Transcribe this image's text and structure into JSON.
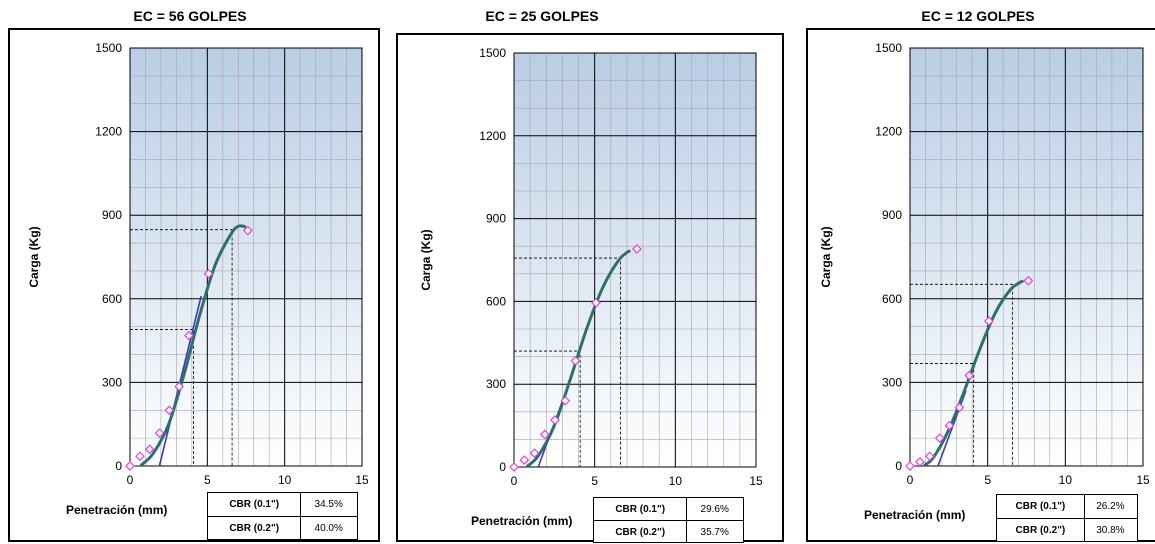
{
  "chart_data": [
    {
      "type": "line",
      "title": "EC = 56 GOLPES",
      "xlabel": "Penetración (mm)",
      "ylabel": "Carga (Kg)",
      "xlim": [
        0,
        15
      ],
      "ylim": [
        0,
        1500
      ],
      "x_ticks": [
        "0",
        "5",
        "10",
        "15"
      ],
      "y_ticks": [
        "0",
        "300",
        "600",
        "900",
        "1200",
        "1500"
      ],
      "grid": true,
      "series": [
        {
          "points": [
            [
              0,
              0
            ],
            [
              0.64,
              35
            ],
            [
              1.27,
              60
            ],
            [
              1.91,
              118
            ],
            [
              2.54,
              200
            ],
            [
              3.18,
              285
            ],
            [
              3.81,
              468
            ],
            [
              5.08,
              690
            ],
            [
              7.62,
              845
            ]
          ]
        }
      ],
      "fitted_curve": [
        [
          0.7,
          2
        ],
        [
          1.5,
          45
        ],
        [
          2.5,
          150
        ],
        [
          3.5,
          330
        ],
        [
          4.5,
          540
        ],
        [
          5.5,
          720
        ],
        [
          6.5,
          830
        ],
        [
          7.0,
          860
        ],
        [
          7.5,
          858
        ]
      ],
      "tangent_line": [
        [
          1.9,
          0
        ],
        [
          4.6,
          610
        ]
      ],
      "reference_lines": [
        {
          "x": 4.1,
          "y": 490
        },
        {
          "x": 6.6,
          "y": 848
        }
      ],
      "cbr": [
        {
          "label": "CBR (0.1\")",
          "value": "34.5%"
        },
        {
          "label": "CBR (0.2\")",
          "value": "40.0%"
        }
      ]
    },
    {
      "type": "line",
      "title": "EC = 25 GOLPES",
      "xlabel": "Penetración (mm)",
      "ylabel": "Carga (Kg)",
      "xlim": [
        0,
        15
      ],
      "ylim": [
        0,
        1500
      ],
      "x_ticks": [
        "0",
        "5",
        "10",
        "15"
      ],
      "y_ticks": [
        "0",
        "300",
        "600",
        "900",
        "1200",
        "1500"
      ],
      "grid": true,
      "series": [
        {
          "points": [
            [
              0,
              0
            ],
            [
              0.64,
              25
            ],
            [
              1.27,
              50
            ],
            [
              1.91,
              118
            ],
            [
              2.54,
              170
            ],
            [
              3.18,
              240
            ],
            [
              3.81,
              385
            ],
            [
              5.08,
              595
            ],
            [
              7.62,
              790
            ]
          ]
        }
      ],
      "fitted_curve": [
        [
          0.8,
          2
        ],
        [
          1.5,
          40
        ],
        [
          2.5,
          150
        ],
        [
          3.5,
          320
        ],
        [
          4.5,
          500
        ],
        [
          5.5,
          650
        ],
        [
          6.5,
          750
        ],
        [
          7.2,
          785
        ]
      ],
      "tangent_line": [
        [
          1.5,
          0
        ],
        [
          3.2,
          270
        ]
      ],
      "reference_lines": [
        {
          "x": 4.1,
          "y": 420
        },
        {
          "x": 6.6,
          "y": 757
        }
      ],
      "cbr": [
        {
          "label": "CBR (0.1\")",
          "value": "29.6%"
        },
        {
          "label": "CBR (0.2\")",
          "value": "35.7%"
        }
      ]
    },
    {
      "type": "line",
      "title": "EC = 12 GOLPES",
      "xlabel": "Penetración (mm)",
      "ylabel": "Carga (Kg)",
      "xlim": [
        0,
        15
      ],
      "ylim": [
        0,
        1500
      ],
      "x_ticks": [
        "0",
        "5",
        "10",
        "15"
      ],
      "y_ticks": [
        "0",
        "300",
        "600",
        "900",
        "1200",
        "1500"
      ],
      "grid": true,
      "series": [
        {
          "points": [
            [
              0,
              0
            ],
            [
              0.64,
              15
            ],
            [
              1.27,
              35
            ],
            [
              1.91,
              100
            ],
            [
              2.54,
              145
            ],
            [
              3.18,
              210
            ],
            [
              3.81,
              325
            ],
            [
              5.08,
              520
            ],
            [
              7.62,
              665
            ]
          ]
        }
      ],
      "fitted_curve": [
        [
          0.9,
          2
        ],
        [
          1.5,
          30
        ],
        [
          2.5,
          130
        ],
        [
          3.5,
          270
        ],
        [
          4.5,
          420
        ],
        [
          5.5,
          550
        ],
        [
          6.5,
          635
        ],
        [
          7.3,
          665
        ]
      ],
      "tangent_line": [
        [
          1.8,
          0
        ],
        [
          3.6,
          270
        ]
      ],
      "reference_lines": [
        {
          "x": 4.1,
          "y": 368
        },
        {
          "x": 6.6,
          "y": 652
        }
      ],
      "cbr": [
        {
          "label": "CBR (0.1\")",
          "value": "26.2%"
        },
        {
          "label": "CBR (0.2\")",
          "value": "30.8%"
        }
      ]
    }
  ],
  "colors": {
    "plot_top": "#b9cde5",
    "plot_bottom": "#ffffff",
    "curve": "#2e6f6d",
    "tangent": "#3b3bb5",
    "points": "#e040e0",
    "grid_major": "#000000",
    "grid_minor": "#a6a6a6"
  }
}
